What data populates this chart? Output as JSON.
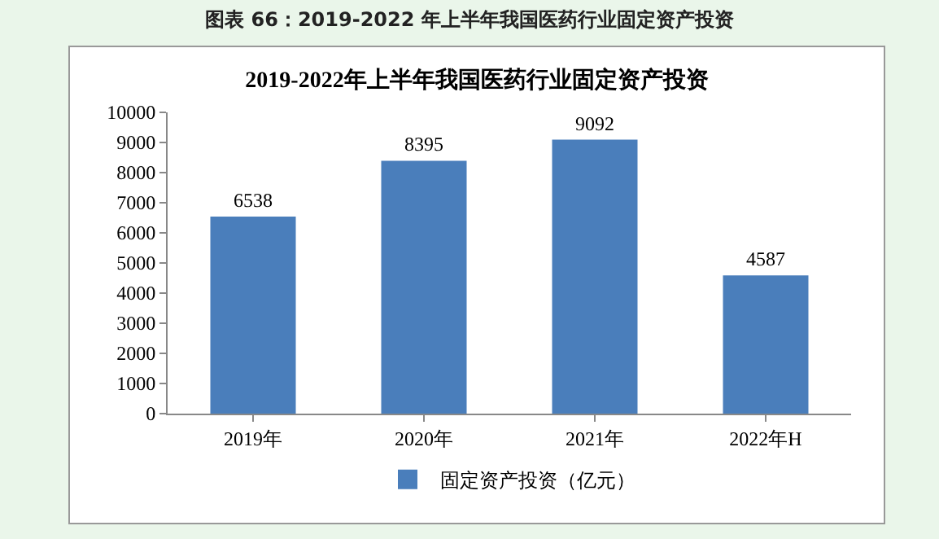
{
  "chart_data": {
    "type": "bar",
    "title": "2019-2022年上半年我国医药行业固定资产投资",
    "annotations": [
      "图表 66：2019-2022 年上半年我国医药行业固定资产投资"
    ],
    "categories": [
      "2019年",
      "2020年",
      "2021年",
      "2022年H"
    ],
    "series": [
      {
        "name": "固定资产投资（亿元）",
        "color": "#4a7ebb",
        "values": [
          6538,
          8395,
          9092,
          4587
        ]
      }
    ],
    "ylim": [
      0,
      10000
    ],
    "yticks": [
      0,
      1000,
      2000,
      3000,
      4000,
      5000,
      6000,
      7000,
      8000,
      9000,
      10000
    ],
    "grid": false,
    "legend": "bottom",
    "data_labels": true
  }
}
